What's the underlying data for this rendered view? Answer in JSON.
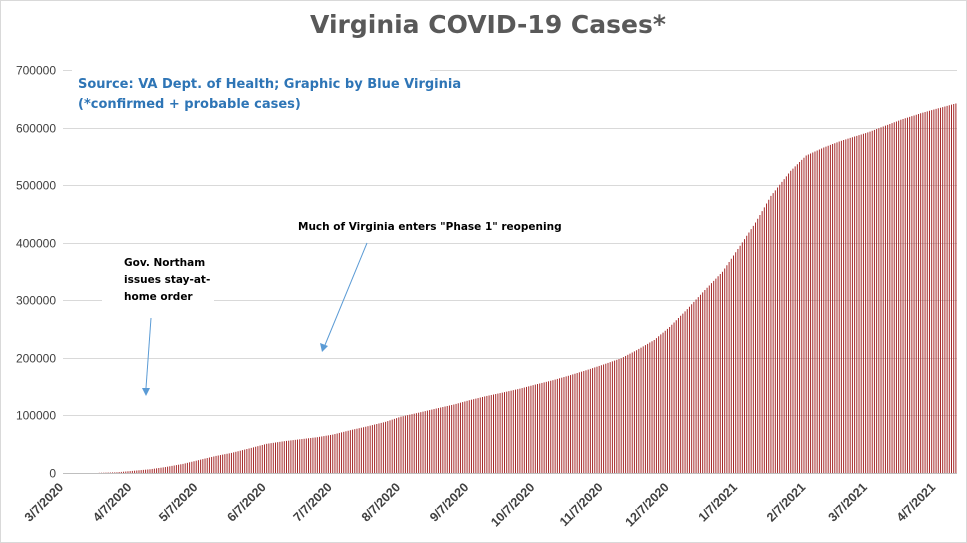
{
  "chart_data": {
    "type": "bar",
    "title": "Virginia COVID-19 Cases*",
    "source_line1": "Source: VA Dept. of Health; Graphic by Blue Virginia",
    "source_line2": "(*confirmed + probable cases)",
    "ylim": [
      0,
      700000
    ],
    "y_ticks": [
      "0",
      "100000",
      "200000",
      "300000",
      "400000",
      "500000",
      "600000",
      "700000"
    ],
    "x_ticks": [
      "3/7/2020",
      "4/7/2020",
      "5/7/2020",
      "6/7/2020",
      "7/7/2020",
      "8/7/2020",
      "9/7/2020",
      "10/7/2020",
      "11/7/2020",
      "12/7/2020",
      "1/7/2021",
      "2/7/2021",
      "3/7/2021",
      "4/7/2021"
    ],
    "x_start_date": "2020-03-07",
    "x_end_date": "2021-04-16",
    "bar_color": "#a52a2a",
    "grid": true,
    "series": [
      {
        "name": "Cases",
        "points": [
          [
            "2020-03-07",
            2
          ],
          [
            "2020-03-15",
            45
          ],
          [
            "2020-03-22",
            220
          ],
          [
            "2020-03-31",
            1250
          ],
          [
            "2020-04-07",
            3650
          ],
          [
            "2020-04-15",
            6500
          ],
          [
            "2020-04-22",
            10300
          ],
          [
            "2020-04-30",
            15800
          ],
          [
            "2020-05-07",
            22300
          ],
          [
            "2020-05-15",
            29700
          ],
          [
            "2020-05-22",
            34900
          ],
          [
            "2020-05-31",
            43600
          ],
          [
            "2020-06-07",
            50700
          ],
          [
            "2020-06-15",
            55300
          ],
          [
            "2020-06-22",
            58500
          ],
          [
            "2020-06-30",
            62200
          ],
          [
            "2020-07-07",
            66700
          ],
          [
            "2020-07-15",
            74400
          ],
          [
            "2020-07-22",
            80400
          ],
          [
            "2020-07-31",
            88900
          ],
          [
            "2020-08-07",
            97900
          ],
          [
            "2020-08-15",
            104800
          ],
          [
            "2020-08-22",
            111100
          ],
          [
            "2020-08-31",
            119000
          ],
          [
            "2020-09-07",
            126400
          ],
          [
            "2020-09-15",
            133900
          ],
          [
            "2020-09-22",
            139600
          ],
          [
            "2020-09-30",
            146500
          ],
          [
            "2020-10-07",
            153600
          ],
          [
            "2020-10-15",
            161200
          ],
          [
            "2020-10-22",
            168900
          ],
          [
            "2020-10-31",
            179600
          ],
          [
            "2020-11-07",
            188500
          ],
          [
            "2020-11-15",
            199300
          ],
          [
            "2020-11-22",
            213300
          ],
          [
            "2020-11-30",
            231000
          ],
          [
            "2020-12-07",
            253600
          ],
          [
            "2020-12-15",
            284700
          ],
          [
            "2020-12-22",
            313800
          ],
          [
            "2020-12-31",
            349600
          ],
          [
            "2021-01-07",
            389100
          ],
          [
            "2021-01-15",
            435000
          ],
          [
            "2021-01-22",
            481300
          ],
          [
            "2021-01-31",
            525000
          ],
          [
            "2021-02-07",
            551400
          ],
          [
            "2021-02-15",
            565300
          ],
          [
            "2021-02-22",
            575900
          ],
          [
            "2021-02-28",
            583300
          ],
          [
            "2021-03-07",
            591600
          ],
          [
            "2021-03-15",
            603300
          ],
          [
            "2021-03-22",
            613600
          ],
          [
            "2021-03-31",
            624800
          ],
          [
            "2021-04-07",
            632400
          ],
          [
            "2021-04-16",
            641900
          ]
        ]
      }
    ],
    "annotations": [
      {
        "id": "stay-at-home",
        "lines": [
          "Gov. Northam",
          "issues stay-at-",
          "home order"
        ]
      },
      {
        "id": "phase1",
        "lines": [
          "Much of Virginia enters \"Phase 1\" reopening"
        ]
      }
    ]
  }
}
